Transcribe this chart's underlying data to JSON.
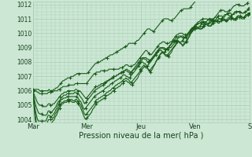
{
  "bg_color": "#cce8d4",
  "grid_color": "#aaccb8",
  "line_color": "#1a5c1a",
  "marker_color": "#1a5c1a",
  "xlabel": "Pression niveau de la mer( hPa )",
  "ylim": [
    1003.8,
    1012.2
  ],
  "yticks": [
    1004,
    1005,
    1006,
    1007,
    1008,
    1009,
    1010,
    1011,
    1012
  ],
  "day_labels": [
    "Mar",
    "Mer",
    "Jeu",
    "Ven",
    "S"
  ],
  "day_positions": [
    0,
    48,
    96,
    144,
    192
  ],
  "total_points": 193,
  "series": [
    [
      1006.0,
      1006.0,
      1006.0,
      1006.0,
      1005.9,
      1005.9,
      1005.8,
      1005.8,
      1005.8,
      1005.8,
      1005.8,
      1005.8,
      1005.8,
      1005.8,
      1005.9,
      1005.9,
      1005.9,
      1005.9,
      1005.9,
      1006.0,
      1006.0,
      1006.0,
      1006.0,
      1006.1,
      1006.1,
      1006.2,
      1006.2,
      1006.3,
      1006.3,
      1006.3,
      1006.3,
      1006.3,
      1006.4,
      1006.4,
      1006.4,
      1006.4,
      1006.4,
      1006.4,
      1006.5,
      1006.5,
      1006.5,
      1006.5,
      1006.5,
      1006.5,
      1006.5,
      1006.5,
      1006.5,
      1006.5,
      1006.5,
      1006.6,
      1006.7,
      1006.8,
      1006.9,
      1007.0,
      1007.1,
      1007.2,
      1007.2,
      1007.3,
      1007.3,
      1007.3,
      1007.3,
      1007.4,
      1007.4,
      1007.4,
      1007.4,
      1007.4,
      1007.4,
      1007.4,
      1007.5,
      1007.5,
      1007.5,
      1007.5,
      1007.5,
      1007.5,
      1007.5,
      1007.5,
      1007.5,
      1007.5,
      1007.6,
      1007.6,
      1007.6,
      1007.7,
      1007.7,
      1007.8,
      1007.8,
      1007.8,
      1007.7,
      1007.7,
      1007.7,
      1007.7,
      1007.8,
      1007.8,
      1007.9,
      1008.0,
      1008.1,
      1008.2,
      1008.3,
      1008.4,
      1008.5,
      1008.6,
      1008.7,
      1008.8,
      1008.8,
      1008.7,
      1008.6,
      1008.5,
      1008.5,
      1008.6,
      1008.7,
      1008.8,
      1008.9,
      1009.0,
      1009.1,
      1009.2,
      1009.3,
      1009.3,
      1009.4,
      1009.4,
      1009.4,
      1009.3,
      1009.3,
      1009.3,
      1009.3,
      1009.4,
      1009.4,
      1009.5,
      1009.6,
      1009.7,
      1009.8,
      1009.9,
      1009.9,
      1010.0,
      1010.0,
      1010.0,
      1010.0,
      1009.9,
      1009.9,
      1009.9,
      1009.9,
      1010.0,
      1010.0,
      1010.1,
      1010.2,
      1010.3,
      1010.4,
      1010.5,
      1010.6,
      1010.7,
      1010.8,
      1010.8,
      1010.9,
      1010.9,
      1011.0,
      1011.0,
      1011.0,
      1011.0,
      1011.0,
      1010.9,
      1010.9,
      1010.9,
      1010.9,
      1011.0,
      1011.0,
      1011.1,
      1011.2,
      1011.3,
      1011.4,
      1011.5,
      1011.6,
      1011.6,
      1011.6,
      1011.6,
      1011.5,
      1011.5,
      1011.5,
      1011.5,
      1011.6,
      1011.6,
      1011.7,
      1011.8,
      1011.9,
      1011.9,
      1012.0,
      1012.0,
      1012.0,
      1012.0,
      1011.9,
      1011.9,
      1011.9,
      1011.9,
      1012.0,
      1012.0,
      1012.1,
      1012.2,
      1012.3
    ],
    [
      1006.0,
      1005.8,
      1005.6,
      1005.4,
      1005.2,
      1005.1,
      1005.0,
      1005.0,
      1005.0,
      1004.9,
      1004.9,
      1004.9,
      1004.9,
      1005.0,
      1005.1,
      1005.1,
      1005.0,
      1005.0,
      1005.1,
      1005.1,
      1005.2,
      1005.3,
      1005.4,
      1005.5,
      1005.6,
      1005.7,
      1005.8,
      1005.8,
      1005.9,
      1005.9,
      1005.9,
      1006.0,
      1006.0,
      1006.0,
      1006.0,
      1006.0,
      1006.0,
      1006.0,
      1006.1,
      1006.1,
      1006.0,
      1006.0,
      1006.0,
      1005.9,
      1005.8,
      1005.7,
      1005.6,
      1005.5,
      1005.5,
      1005.6,
      1005.7,
      1005.8,
      1005.9,
      1006.0,
      1006.1,
      1006.2,
      1006.3,
      1006.3,
      1006.3,
      1006.4,
      1006.4,
      1006.5,
      1006.5,
      1006.5,
      1006.6,
      1006.6,
      1006.7,
      1006.7,
      1006.8,
      1006.8,
      1006.9,
      1006.9,
      1007.0,
      1007.0,
      1007.0,
      1007.1,
      1007.1,
      1007.2,
      1007.2,
      1007.2,
      1007.3,
      1007.3,
      1007.4,
      1007.5,
      1007.5,
      1007.4,
      1007.4,
      1007.3,
      1007.3,
      1007.4,
      1007.5,
      1007.5,
      1007.6,
      1007.7,
      1007.8,
      1007.9,
      1008.0,
      1008.1,
      1008.2,
      1008.3,
      1008.3,
      1008.3,
      1008.2,
      1008.2,
      1008.1,
      1008.1,
      1008.2,
      1008.3,
      1008.4,
      1008.5,
      1008.6,
      1008.7,
      1008.8,
      1008.9,
      1008.9,
      1009.0,
      1009.0,
      1009.0,
      1008.9,
      1008.9,
      1008.9,
      1008.9,
      1009.0,
      1009.0,
      1009.1,
      1009.2,
      1009.3,
      1009.4,
      1009.5,
      1009.6,
      1009.7,
      1009.7,
      1009.8,
      1009.8,
      1009.8,
      1009.7,
      1009.7,
      1009.7,
      1009.8,
      1009.9,
      1010.0,
      1010.1,
      1010.2,
      1010.3,
      1010.4,
      1010.5,
      1010.6,
      1010.6,
      1010.7,
      1010.7,
      1010.8,
      1010.8,
      1010.8,
      1010.8,
      1010.8,
      1010.7,
      1010.7,
      1010.7,
      1010.7,
      1010.8,
      1010.9,
      1011.0,
      1011.1,
      1011.1,
      1011.1,
      1011.1,
      1011.0,
      1011.0,
      1011.0,
      1011.1,
      1011.2,
      1011.3,
      1011.3,
      1011.3,
      1011.3,
      1011.2,
      1011.2,
      1011.2,
      1011.3,
      1011.4,
      1011.5,
      1011.5,
      1011.5,
      1011.5,
      1011.5,
      1011.4,
      1011.4,
      1011.4,
      1011.4,
      1011.5,
      1011.5,
      1011.6,
      1011.7,
      1011.8
    ],
    [
      1006.0,
      1005.6,
      1005.2,
      1004.9,
      1004.7,
      1004.5,
      1004.4,
      1004.4,
      1004.4,
      1004.3,
      1004.3,
      1004.3,
      1004.3,
      1004.4,
      1004.6,
      1004.6,
      1004.5,
      1004.5,
      1004.6,
      1004.7,
      1004.8,
      1004.9,
      1005.1,
      1005.2,
      1005.3,
      1005.4,
      1005.5,
      1005.6,
      1005.7,
      1005.7,
      1005.7,
      1005.8,
      1005.8,
      1005.8,
      1005.8,
      1005.8,
      1005.8,
      1005.8,
      1005.9,
      1005.9,
      1005.8,
      1005.8,
      1005.7,
      1005.6,
      1005.5,
      1005.4,
      1005.2,
      1005.1,
      1005.2,
      1005.3,
      1005.4,
      1005.5,
      1005.6,
      1005.7,
      1005.8,
      1005.9,
      1006.0,
      1006.1,
      1006.1,
      1006.2,
      1006.2,
      1006.3,
      1006.3,
      1006.4,
      1006.4,
      1006.5,
      1006.5,
      1006.6,
      1006.7,
      1006.7,
      1006.8,
      1006.8,
      1006.9,
      1006.9,
      1007.0,
      1007.0,
      1007.1,
      1007.1,
      1007.2,
      1007.2,
      1007.3,
      1007.3,
      1007.4,
      1007.4,
      1007.4,
      1007.4,
      1007.3,
      1007.3,
      1007.2,
      1007.3,
      1007.4,
      1007.5,
      1007.6,
      1007.7,
      1007.8,
      1007.9,
      1008.0,
      1008.1,
      1008.2,
      1008.3,
      1008.3,
      1008.2,
      1008.2,
      1008.1,
      1008.0,
      1008.0,
      1008.1,
      1008.2,
      1008.3,
      1008.4,
      1008.5,
      1008.6,
      1008.7,
      1008.8,
      1008.9,
      1009.0,
      1009.0,
      1009.0,
      1008.9,
      1008.9,
      1008.9,
      1008.9,
      1009.0,
      1009.0,
      1009.1,
      1009.2,
      1009.3,
      1009.4,
      1009.5,
      1009.6,
      1009.7,
      1009.7,
      1009.8,
      1009.8,
      1009.8,
      1009.7,
      1009.7,
      1009.7,
      1009.7,
      1009.8,
      1009.9,
      1010.0,
      1010.1,
      1010.2,
      1010.3,
      1010.4,
      1010.5,
      1010.6,
      1010.6,
      1010.7,
      1010.7,
      1010.7,
      1010.7,
      1010.6,
      1010.6,
      1010.6,
      1010.7,
      1010.8,
      1010.9,
      1011.0,
      1011.0,
      1011.0,
      1011.0,
      1011.0,
      1010.9,
      1010.9,
      1011.0,
      1011.1,
      1011.2,
      1011.2,
      1011.2,
      1011.2,
      1011.1,
      1011.1,
      1011.2,
      1011.3,
      1011.4,
      1011.4,
      1011.4,
      1011.4,
      1011.3,
      1011.3,
      1011.3,
      1011.4,
      1011.5,
      1011.5,
      1011.5,
      1011.5,
      1011.5,
      1011.4,
      1011.4,
      1011.4,
      1011.5,
      1011.5,
      1011.6,
      1011.6,
      1011.6
    ],
    [
      1006.0,
      1005.4,
      1004.8,
      1004.4,
      1004.1,
      1003.9,
      1003.9,
      1003.9,
      1003.9,
      1003.9,
      1003.9,
      1003.9,
      1003.9,
      1004.1,
      1004.3,
      1004.3,
      1004.2,
      1004.2,
      1004.3,
      1004.4,
      1004.5,
      1004.7,
      1004.8,
      1005.0,
      1005.1,
      1005.3,
      1005.4,
      1005.4,
      1005.5,
      1005.5,
      1005.5,
      1005.6,
      1005.6,
      1005.6,
      1005.6,
      1005.6,
      1005.6,
      1005.6,
      1005.6,
      1005.6,
      1005.6,
      1005.5,
      1005.4,
      1005.3,
      1005.2,
      1005.0,
      1004.8,
      1004.7,
      1004.8,
      1004.9,
      1005.0,
      1005.1,
      1005.2,
      1005.3,
      1005.4,
      1005.5,
      1005.6,
      1005.7,
      1005.7,
      1005.8,
      1005.8,
      1005.9,
      1005.9,
      1006.0,
      1006.0,
      1006.1,
      1006.2,
      1006.2,
      1006.3,
      1006.3,
      1006.4,
      1006.5,
      1006.5,
      1006.6,
      1006.6,
      1006.7,
      1006.7,
      1006.8,
      1006.8,
      1006.9,
      1006.9,
      1007.0,
      1007.1,
      1007.1,
      1007.1,
      1007.0,
      1007.0,
      1006.9,
      1006.9,
      1007.0,
      1007.1,
      1007.2,
      1007.3,
      1007.4,
      1007.5,
      1007.6,
      1007.7,
      1007.8,
      1007.9,
      1008.0,
      1008.0,
      1007.9,
      1007.9,
      1007.8,
      1007.7,
      1007.8,
      1007.9,
      1008.0,
      1008.1,
      1008.2,
      1008.3,
      1008.4,
      1008.5,
      1008.6,
      1008.7,
      1008.8,
      1008.8,
      1008.8,
      1008.7,
      1008.7,
      1008.7,
      1008.8,
      1008.9,
      1009.0,
      1009.1,
      1009.2,
      1009.3,
      1009.4,
      1009.5,
      1009.5,
      1009.5,
      1009.5,
      1009.5,
      1009.4,
      1009.4,
      1009.4,
      1009.5,
      1009.6,
      1009.7,
      1009.8,
      1009.9,
      1010.0,
      1010.1,
      1010.2,
      1010.3,
      1010.4,
      1010.4,
      1010.4,
      1010.4,
      1010.3,
      1010.3,
      1010.4,
      1010.5,
      1010.6,
      1010.7,
      1010.7,
      1010.7,
      1010.7,
      1010.6,
      1010.6,
      1010.7,
      1010.8,
      1010.9,
      1010.9,
      1010.9,
      1010.9,
      1010.8,
      1010.8,
      1010.9,
      1011.0,
      1011.0,
      1011.0,
      1011.0,
      1011.0,
      1010.9,
      1010.9,
      1010.9,
      1011.0,
      1011.1,
      1011.1,
      1011.1,
      1011.1,
      1011.0,
      1011.0,
      1011.0,
      1011.1,
      1011.2,
      1011.2,
      1011.2,
      1011.2,
      1011.1,
      1011.1,
      1011.1,
      1011.2,
      1011.3,
      1011.3,
      1011.4,
      1011.4
    ],
    [
      1006.0,
      1005.2,
      1004.5,
      1003.9,
      1003.5,
      1003.3,
      1003.2,
      1003.3,
      1003.4,
      1003.4,
      1003.4,
      1003.5,
      1003.6,
      1003.8,
      1004.0,
      1004.0,
      1004.0,
      1004.0,
      1004.1,
      1004.2,
      1004.4,
      1004.5,
      1004.7,
      1004.8,
      1005.0,
      1005.1,
      1005.2,
      1005.2,
      1005.3,
      1005.3,
      1005.3,
      1005.4,
      1005.4,
      1005.4,
      1005.4,
      1005.4,
      1005.3,
      1005.3,
      1005.4,
      1005.4,
      1005.3,
      1005.2,
      1005.1,
      1005.0,
      1004.8,
      1004.6,
      1004.4,
      1004.3,
      1004.4,
      1004.5,
      1004.6,
      1004.7,
      1004.8,
      1004.9,
      1005.0,
      1005.1,
      1005.3,
      1005.4,
      1005.4,
      1005.5,
      1005.5,
      1005.6,
      1005.6,
      1005.7,
      1005.7,
      1005.8,
      1005.9,
      1005.9,
      1006.0,
      1006.0,
      1006.1,
      1006.2,
      1006.2,
      1006.3,
      1006.4,
      1006.4,
      1006.5,
      1006.5,
      1006.6,
      1006.6,
      1006.7,
      1006.8,
      1006.8,
      1006.9,
      1006.8,
      1006.8,
      1006.7,
      1006.6,
      1006.6,
      1006.7,
      1006.8,
      1006.9,
      1007.0,
      1007.1,
      1007.2,
      1007.3,
      1007.5,
      1007.6,
      1007.7,
      1007.8,
      1007.7,
      1007.7,
      1007.6,
      1007.5,
      1007.4,
      1007.5,
      1007.6,
      1007.7,
      1007.8,
      1007.9,
      1008.1,
      1008.2,
      1008.3,
      1008.5,
      1008.6,
      1008.7,
      1008.6,
      1008.6,
      1008.5,
      1008.5,
      1008.5,
      1008.6,
      1008.7,
      1008.8,
      1008.9,
      1009.0,
      1009.1,
      1009.2,
      1009.4,
      1009.4,
      1009.4,
      1009.3,
      1009.3,
      1009.2,
      1009.2,
      1009.3,
      1009.4,
      1009.5,
      1009.6,
      1009.7,
      1009.9,
      1010.0,
      1010.1,
      1010.2,
      1010.3,
      1010.4,
      1010.4,
      1010.4,
      1010.3,
      1010.3,
      1010.3,
      1010.4,
      1010.5,
      1010.6,
      1010.6,
      1010.6,
      1010.5,
      1010.5,
      1010.5,
      1010.6,
      1010.7,
      1010.8,
      1010.8,
      1010.8,
      1010.8,
      1010.7,
      1010.7,
      1010.8,
      1010.9,
      1010.9,
      1010.9,
      1010.9,
      1010.8,
      1010.8,
      1010.9,
      1011.0,
      1011.0,
      1011.0,
      1011.0,
      1010.9,
      1010.9,
      1010.9,
      1011.0,
      1011.1,
      1011.1,
      1011.1,
      1011.0,
      1011.0,
      1011.0,
      1011.1,
      1011.2,
      1011.2,
      1011.3,
      1011.3
    ],
    [
      1006.0,
      1005.0,
      1004.1,
      1003.5,
      1003.0,
      1002.7,
      1002.7,
      1002.8,
      1003.0,
      1003.0,
      1003.0,
      1003.0,
      1003.2,
      1003.5,
      1003.7,
      1003.7,
      1003.7,
      1003.8,
      1003.9,
      1004.0,
      1004.2,
      1004.3,
      1004.5,
      1004.7,
      1004.8,
      1005.0,
      1005.1,
      1005.1,
      1005.2,
      1005.2,
      1005.2,
      1005.3,
      1005.3,
      1005.3,
      1005.3,
      1005.2,
      1005.2,
      1005.2,
      1005.3,
      1005.2,
      1005.1,
      1005.0,
      1004.9,
      1004.7,
      1004.5,
      1004.3,
      1004.1,
      1004.0,
      1004.1,
      1004.2,
      1004.3,
      1004.4,
      1004.5,
      1004.7,
      1004.8,
      1004.9,
      1005.1,
      1005.2,
      1005.2,
      1005.3,
      1005.3,
      1005.4,
      1005.4,
      1005.5,
      1005.5,
      1005.6,
      1005.7,
      1005.7,
      1005.8,
      1005.8,
      1005.9,
      1006.0,
      1006.0,
      1006.1,
      1006.2,
      1006.2,
      1006.3,
      1006.3,
      1006.4,
      1006.5,
      1006.5,
      1006.6,
      1006.7,
      1006.7,
      1006.6,
      1006.6,
      1006.5,
      1006.4,
      1006.4,
      1006.5,
      1006.6,
      1006.7,
      1006.8,
      1006.9,
      1007.1,
      1007.2,
      1007.4,
      1007.5,
      1007.6,
      1007.7,
      1007.6,
      1007.6,
      1007.5,
      1007.4,
      1007.3,
      1007.4,
      1007.5,
      1007.7,
      1007.8,
      1008.0,
      1008.1,
      1008.3,
      1008.4,
      1008.5,
      1008.6,
      1008.7,
      1008.6,
      1008.5,
      1008.4,
      1008.4,
      1008.4,
      1008.5,
      1008.6,
      1008.7,
      1008.9,
      1009.0,
      1009.1,
      1009.2,
      1009.4,
      1009.4,
      1009.4,
      1009.3,
      1009.2,
      1009.1,
      1009.2,
      1009.3,
      1009.4,
      1009.5,
      1009.7,
      1009.8,
      1010.0,
      1010.1,
      1010.2,
      1010.3,
      1010.4,
      1010.5,
      1010.4,
      1010.4,
      1010.3,
      1010.3,
      1010.3,
      1010.4,
      1010.5,
      1010.6,
      1010.6,
      1010.6,
      1010.5,
      1010.5,
      1010.5,
      1010.6,
      1010.7,
      1010.8,
      1010.9,
      1010.9,
      1010.8,
      1010.8,
      1010.8,
      1010.9,
      1011.0,
      1011.0,
      1011.0,
      1010.9,
      1010.9,
      1010.9,
      1011.0,
      1011.1,
      1011.1,
      1011.0,
      1011.0,
      1011.0,
      1011.0,
      1011.1,
      1011.2,
      1011.2,
      1011.2,
      1011.1,
      1011.1,
      1011.1,
      1011.2,
      1011.3,
      1011.3,
      1011.4,
      1011.4
    ],
    [
      1006.1,
      1006.1,
      1006.1,
      1006.1,
      1006.1,
      1006.1,
      1006.0,
      1006.0,
      1006.0,
      1006.0,
      1006.0,
      1006.0,
      1006.0,
      1006.0,
      1006.1,
      1006.0,
      1006.0,
      1006.0,
      1006.1,
      1006.1,
      1006.2,
      1006.2,
      1006.3,
      1006.4,
      1006.5,
      1006.6,
      1006.7,
      1006.7,
      1006.8,
      1006.8,
      1006.9,
      1006.9,
      1006.9,
      1007.0,
      1007.0,
      1007.0,
      1007.1,
      1007.1,
      1007.2,
      1007.2,
      1007.2,
      1007.2,
      1007.2,
      1007.2,
      1007.2,
      1007.2,
      1007.2,
      1007.2,
      1007.3,
      1007.4,
      1007.5,
      1007.6,
      1007.7,
      1007.8,
      1007.9,
      1007.9,
      1008.0,
      1008.0,
      1008.0,
      1008.1,
      1008.1,
      1008.2,
      1008.2,
      1008.3,
      1008.3,
      1008.4,
      1008.4,
      1008.5,
      1008.5,
      1008.5,
      1008.6,
      1008.6,
      1008.7,
      1008.7,
      1008.8,
      1008.8,
      1008.9,
      1008.9,
      1009.0,
      1009.0,
      1009.1,
      1009.1,
      1009.2,
      1009.3,
      1009.3,
      1009.3,
      1009.3,
      1009.3,
      1009.3,
      1009.4,
      1009.5,
      1009.5,
      1009.6,
      1009.7,
      1009.8,
      1009.9,
      1010.0,
      1010.1,
      1010.2,
      1010.3,
      1010.3,
      1010.3,
      1010.2,
      1010.2,
      1010.1,
      1010.2,
      1010.3,
      1010.4,
      1010.5,
      1010.6,
      1010.7,
      1010.8,
      1010.9,
      1011.0,
      1011.0,
      1011.0,
      1011.0,
      1011.0,
      1010.9,
      1010.9,
      1010.9,
      1011.0,
      1011.0,
      1011.1,
      1011.2,
      1011.3,
      1011.4,
      1011.5,
      1011.6,
      1011.6,
      1011.7,
      1011.7,
      1011.7,
      1011.7,
      1011.7,
      1011.7,
      1011.8,
      1011.9,
      1012.0,
      1012.1,
      1012.2,
      1012.3,
      1012.3,
      1012.4,
      1012.4,
      1012.4,
      1012.4,
      1012.3,
      1012.3,
      1012.4,
      1012.5,
      1012.6,
      1012.6,
      1012.7,
      1012.7,
      1012.7,
      1012.6,
      1012.6,
      1012.7,
      1012.8,
      1012.9,
      1012.9,
      1012.9,
      1012.8,
      1012.8,
      1012.8,
      1012.9,
      1013.0,
      1013.0,
      1013.0,
      1012.9,
      1012.9,
      1012.9,
      1013.0,
      1013.1,
      1013.1,
      1013.0,
      1013.0,
      1013.0,
      1013.1,
      1013.2,
      1013.2,
      1013.1,
      1013.1,
      1013.1,
      1013.2,
      1013.3,
      1013.3
    ]
  ],
  "marker_interval": 8
}
